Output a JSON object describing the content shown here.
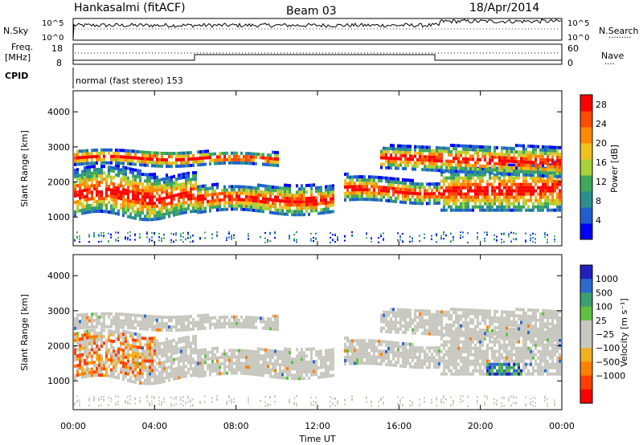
{
  "header": {
    "station": "Hankasalmi (fitACF)",
    "beam": "Beam 03",
    "date": "18/Apr/2014"
  },
  "nsky_panel": {
    "left_label": "N.Sky",
    "right_label": "N.Search",
    "tick_top": "10^5",
    "tick_bottom": "10^0",
    "right_tick_top": "10^5",
    "right_tick_bottom": "10^0",
    "search_legend": "·········"
  },
  "freq_panel": {
    "left_label_1": "Freq.",
    "left_label_2": "[MHz]",
    "right_label": "Nave",
    "left_ticks": [
      "18",
      "8"
    ],
    "right_ticks": [
      "60",
      "0"
    ],
    "nave_legend": "····"
  },
  "cpid_panel": {
    "label": "CPID",
    "program": "normal (fast stereo) 153"
  },
  "chart_data": [
    {
      "type": "heatmap",
      "name": "power",
      "ylabel": "Slant Range [km]",
      "xlabel": "Time UT",
      "x_ticks": [
        "00:00",
        "04:00",
        "08:00",
        "12:00",
        "16:00",
        "20:00",
        "00:00"
      ],
      "x_range_hours": [
        0,
        24
      ],
      "y_range": [
        180,
        4600
      ],
      "y_ticks": [
        1000,
        2000,
        3000,
        4000
      ],
      "colorbar": {
        "label": "Power [dB]",
        "ticks": [
          4,
          8,
          12,
          16,
          20,
          24,
          28
        ],
        "range": [
          0,
          30
        ],
        "colors": [
          "#0000ff",
          "#1f5fd0",
          "#2c8f8f",
          "#3fa85a",
          "#a8d13a",
          "#f0c020",
          "#ff8a00",
          "#ff4a00",
          "#ff0000"
        ]
      }
    },
    {
      "type": "heatmap",
      "name": "velocity",
      "ylabel": "Slant Range [km]",
      "xlabel": "Time UT",
      "x_ticks": [
        "00:00",
        "04:00",
        "08:00",
        "12:00",
        "16:00",
        "20:00",
        "00:00"
      ],
      "x_range_hours": [
        0,
        24
      ],
      "y_range": [
        180,
        4600
      ],
      "y_ticks": [
        1000,
        2000,
        3000,
        4000
      ],
      "colorbar": {
        "label": "Velocity [m s⁻¹]",
        "ticks": [
          "1000",
          "500",
          "100",
          "25",
          "−25",
          "−100",
          "−500",
          "−1000"
        ],
        "colors": [
          "#2020c0",
          "#2c6ad0",
          "#3aa070",
          "#60c040",
          "#c8c8c0",
          "#c8c8c0",
          "#f0b020",
          "#ff8000",
          "#ff4000",
          "#ff0000"
        ]
      }
    }
  ],
  "colors": {
    "ground": "#c8c8c0",
    "axis": "#000000"
  }
}
